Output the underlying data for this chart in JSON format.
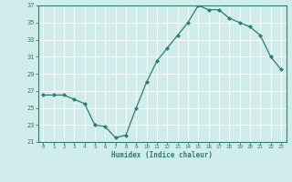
{
  "x": [
    0,
    1,
    2,
    3,
    4,
    5,
    6,
    7,
    8,
    9,
    10,
    11,
    12,
    13,
    14,
    15,
    16,
    17,
    18,
    19,
    20,
    21,
    22,
    23
  ],
  "y": [
    26.5,
    26.5,
    26.5,
    26.0,
    25.5,
    23.0,
    22.8,
    21.5,
    21.8,
    25.0,
    28.0,
    30.5,
    32.0,
    33.5,
    35.0,
    37.0,
    36.5,
    36.5,
    35.5,
    35.0,
    34.5,
    33.5,
    31.0,
    29.5
  ],
  "xlabel": "Humidex (Indice chaleur)",
  "ylim": [
    21,
    37
  ],
  "xlim": [
    -0.5,
    23.5
  ],
  "yticks": [
    21,
    23,
    25,
    27,
    29,
    31,
    33,
    35,
    37
  ],
  "xticks": [
    0,
    1,
    2,
    3,
    4,
    5,
    6,
    7,
    8,
    9,
    10,
    11,
    12,
    13,
    14,
    15,
    16,
    17,
    18,
    19,
    20,
    21,
    22,
    23
  ],
  "xtick_labels": [
    "0",
    "1",
    "2",
    "3",
    "4",
    "5",
    "6",
    "7",
    "8",
    "9",
    "10",
    "11",
    "12",
    "13",
    "14",
    "15",
    "16",
    "17",
    "18",
    "19",
    "20",
    "21",
    "22",
    "23"
  ],
  "line_color": "#2e7d6e",
  "bg_color": "#d0eceb",
  "grid_color": "#ffffff"
}
